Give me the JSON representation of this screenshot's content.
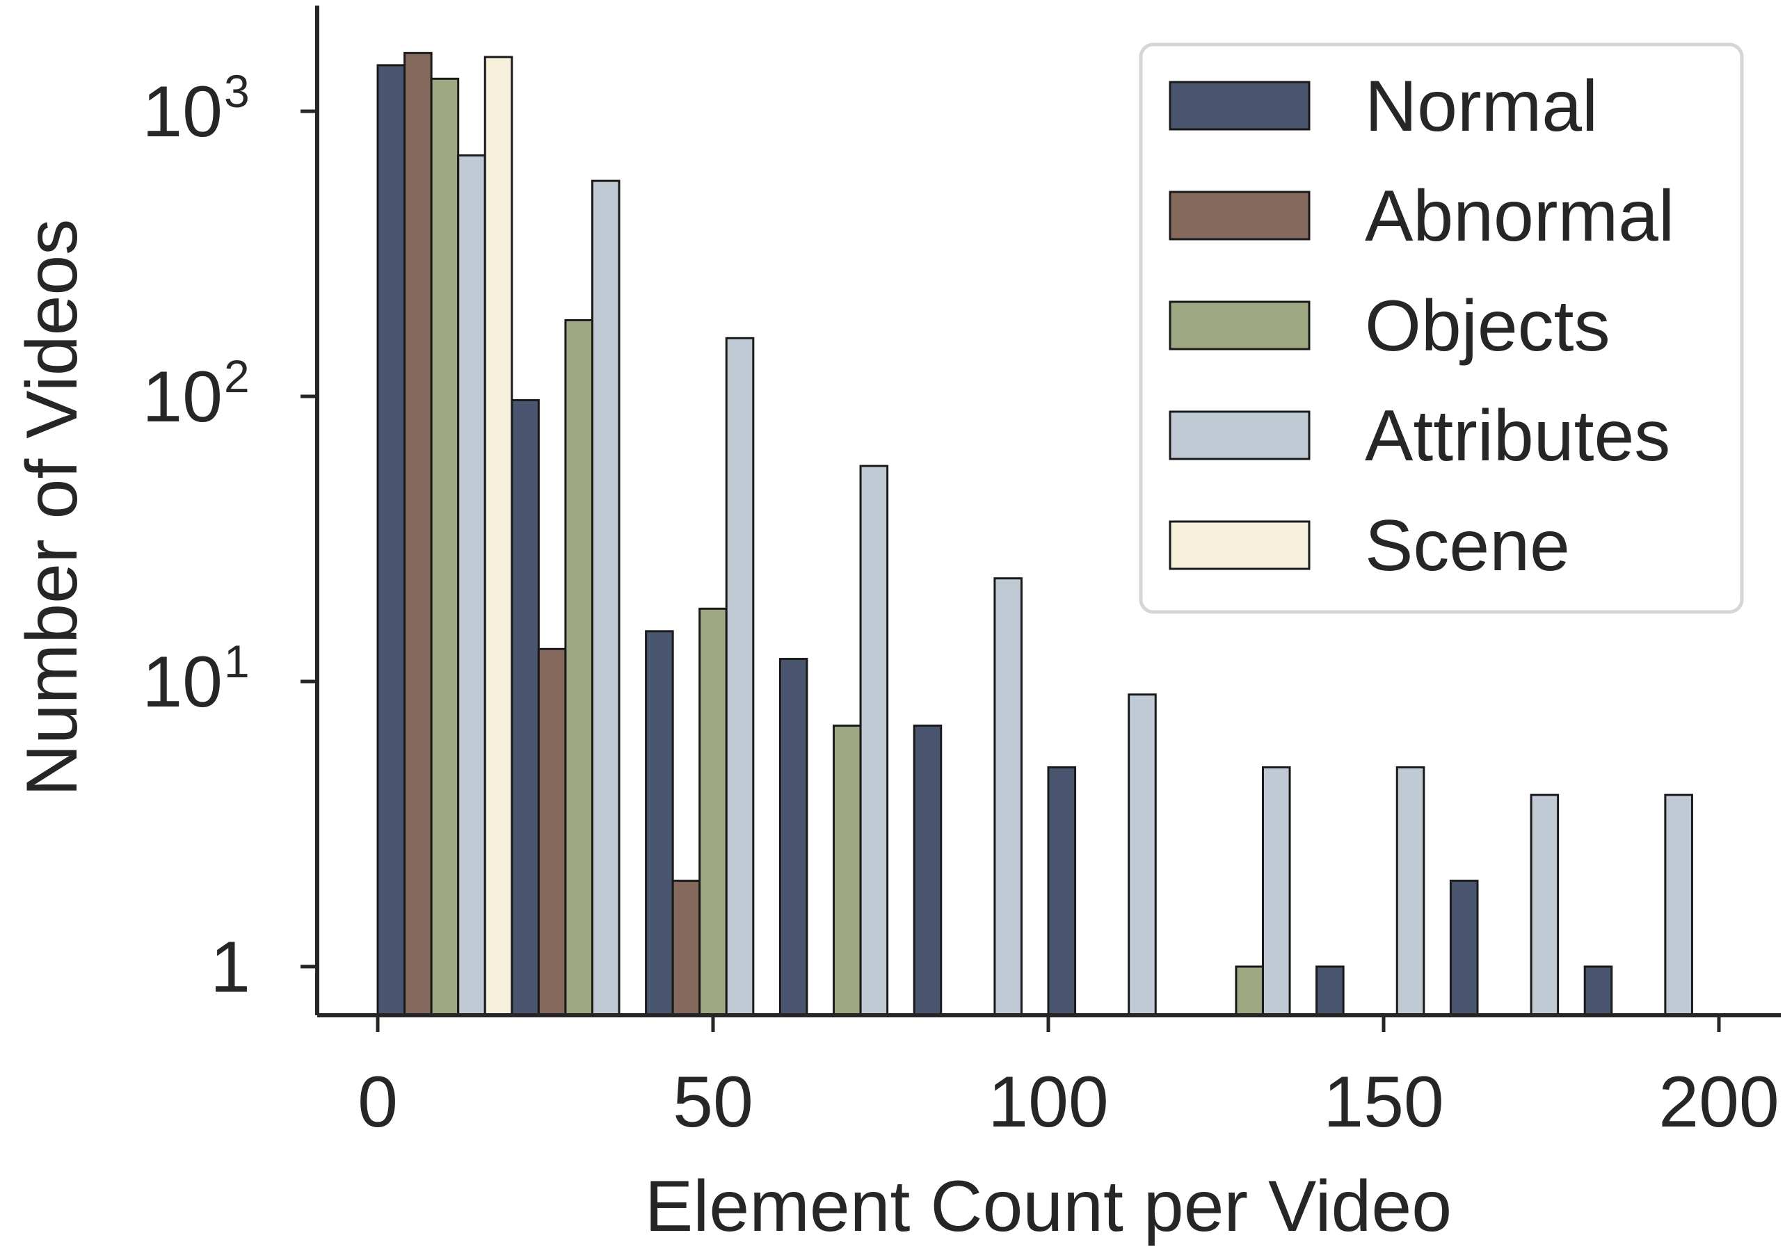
{
  "chart_data": {
    "type": "bar",
    "title": "",
    "xlabel": "Element Count per Video",
    "ylabel": "Number of Videos",
    "y_scale": "log",
    "ylim": [
      0.68,
      2200
    ],
    "xlim": [
      -9,
      209
    ],
    "x_ticks": [
      0,
      50,
      100,
      150,
      200
    ],
    "x_tick_labels": [
      "0",
      "50",
      "100",
      "150",
      "200"
    ],
    "y_ticks": [
      1,
      10,
      100,
      1000
    ],
    "y_tick_labels": [
      {
        "base": "1",
        "exp": ""
      },
      {
        "base": "10",
        "exp": "1"
      },
      {
        "base": "10",
        "exp": "2"
      },
      {
        "base": "10",
        "exp": "3"
      }
    ],
    "bin_width": 20,
    "bin_starts": [
      0,
      20,
      40,
      60,
      80,
      100,
      120,
      140,
      160,
      180
    ],
    "grid": false,
    "legend_position": "top-right",
    "series": [
      {
        "name": "Normal",
        "color": "#4a5670",
        "values": [
          1450,
          97,
          15,
          12,
          7,
          5,
          0,
          1,
          2,
          1
        ]
      },
      {
        "name": "Abnormal",
        "color": "#86695d",
        "values": [
          1600,
          13,
          2,
          0,
          0,
          0,
          0,
          0,
          0,
          0
        ]
      },
      {
        "name": "Objects",
        "color": "#9ea983",
        "values": [
          1300,
          185,
          18,
          7,
          0,
          0,
          1,
          0,
          0,
          0
        ]
      },
      {
        "name": "Attributes",
        "color": "#c0cad5",
        "values": [
          700,
          570,
          160,
          57,
          23,
          9,
          5,
          5,
          4,
          4
        ]
      },
      {
        "name": "Scene",
        "color": "#f6efdc",
        "values": [
          1550,
          0,
          0,
          0,
          0,
          0,
          0,
          0,
          0,
          0
        ]
      }
    ]
  }
}
